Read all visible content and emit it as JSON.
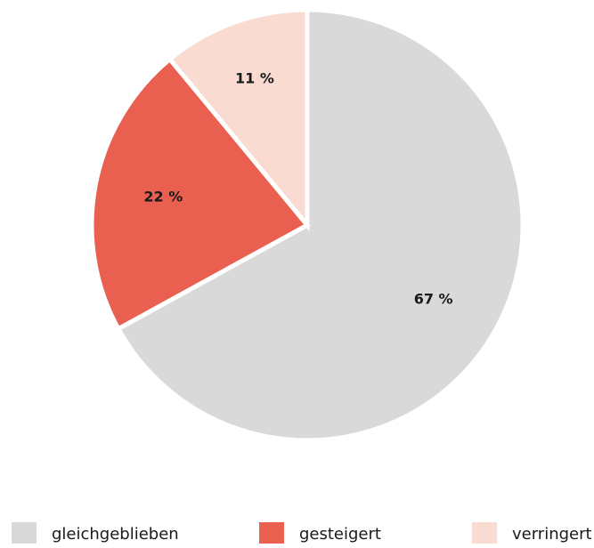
{
  "chart_data": {
    "type": "pie",
    "categories": [
      "gleichgeblieben",
      "gesteigert",
      "verringert"
    ],
    "values": [
      67,
      22,
      11
    ],
    "value_labels": [
      "67 %",
      "22 %",
      "11 %"
    ],
    "colors": [
      "#d9d9d9",
      "#e95f50",
      "#f9dbd1"
    ]
  }
}
